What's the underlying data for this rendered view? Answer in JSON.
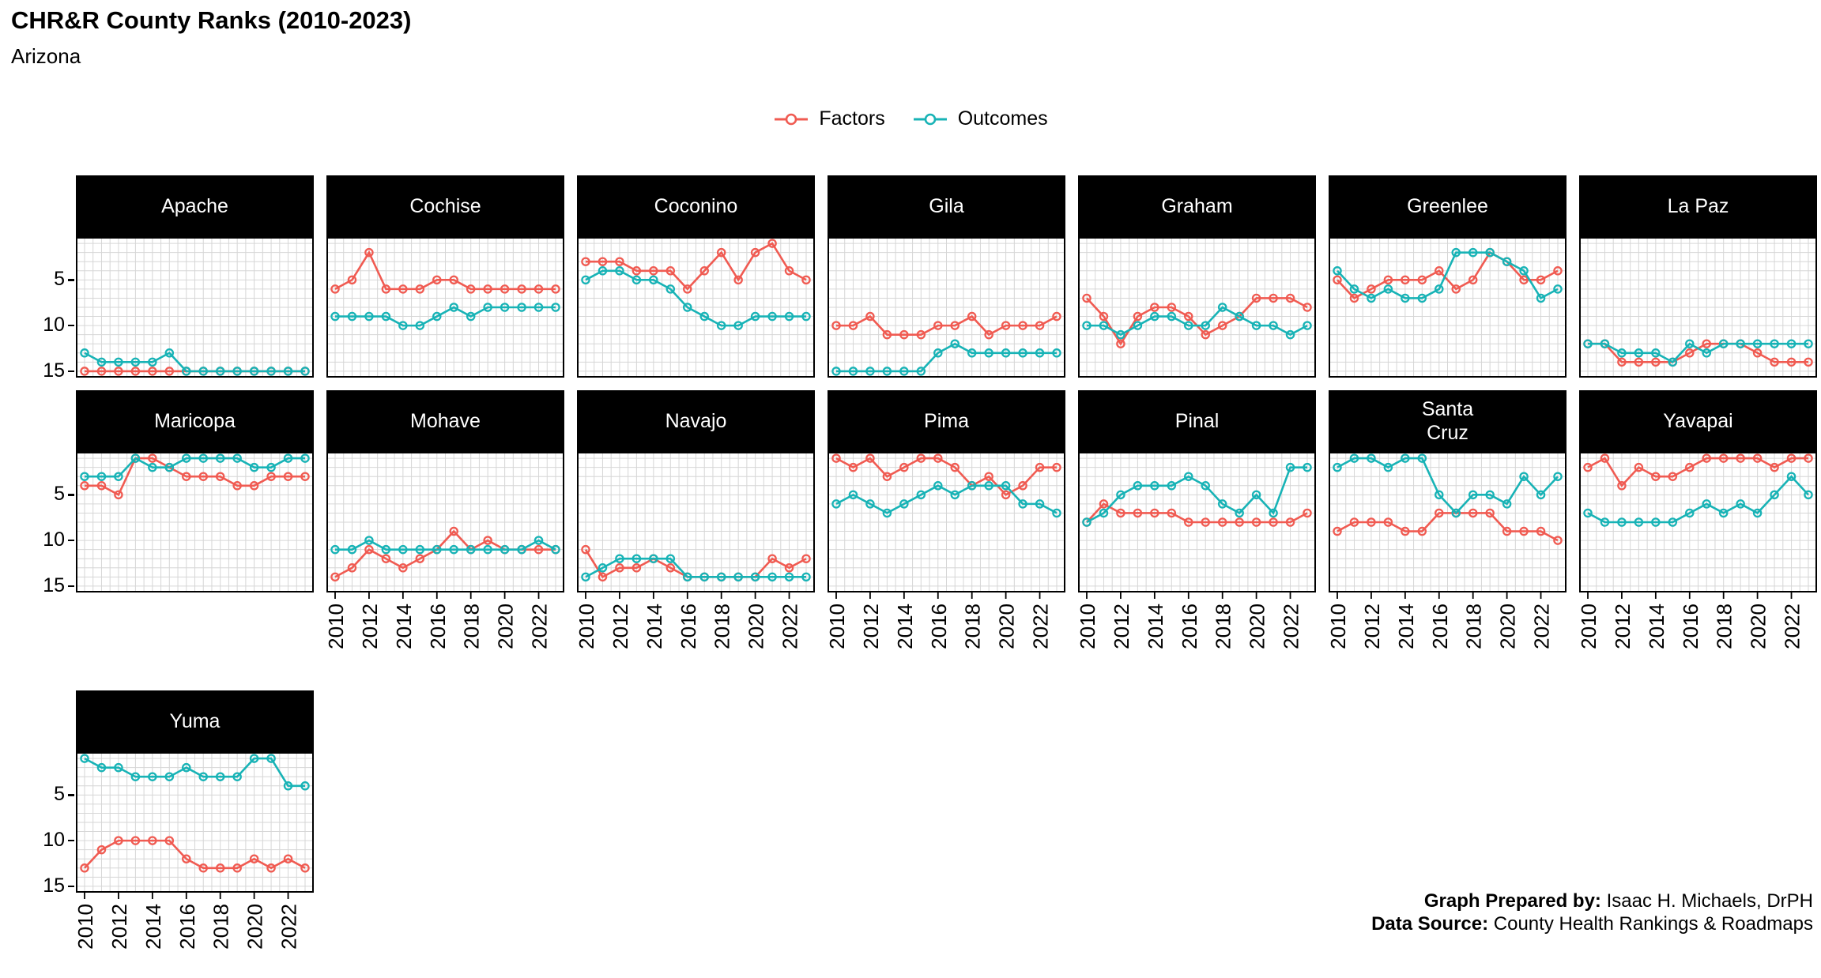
{
  "header": {
    "title": "CHR&R County Ranks (2010-2023)",
    "subtitle": "Arizona"
  },
  "legend": {
    "items": [
      {
        "label": "Factors",
        "color": "#F05B52"
      },
      {
        "label": "Outcomes",
        "color": "#18B3B6"
      }
    ]
  },
  "footer": {
    "prepared_by_label": "Graph Prepared by:",
    "prepared_by_value": " Isaac H. Michaels, DrPH",
    "source_label": "Data Source:",
    "source_value": " County Health Rankings & Roadmaps"
  },
  "chart_data": {
    "type": "line",
    "title": "CHR&R County Ranks (2010-2023)",
    "subtitle": "Arizona",
    "x": [
      2010,
      2011,
      2012,
      2013,
      2014,
      2015,
      2016,
      2017,
      2018,
      2019,
      2020,
      2021,
      2022,
      2023
    ],
    "x_tick_labels": [
      "2010",
      "2012",
      "2014",
      "2016",
      "2018",
      "2020",
      "2022"
    ],
    "x_tick_indices": [
      0,
      2,
      4,
      6,
      8,
      10,
      12
    ],
    "y_ticks": [
      5,
      10,
      15
    ],
    "ylim": [
      1,
      15
    ],
    "y_axis_inverted": true,
    "grid": true,
    "legend_position": "top",
    "series_names": [
      "Factors",
      "Outcomes"
    ],
    "colors": {
      "factors": "#F05B52",
      "outcomes": "#18B3B6",
      "grid": "#D6D6D6",
      "strip_bg": "#000000",
      "strip_text": "#FFFFFF",
      "border": "#000000"
    },
    "panels": [
      {
        "county": "Apache",
        "factors": [
          15,
          15,
          15,
          15,
          15,
          15,
          15,
          15,
          15,
          15,
          15,
          15,
          15,
          15
        ],
        "outcomes": [
          13,
          14,
          14,
          14,
          14,
          13,
          15,
          15,
          15,
          15,
          15,
          15,
          15,
          15
        ]
      },
      {
        "county": "Cochise",
        "factors": [
          6,
          5,
          2,
          6,
          6,
          6,
          5,
          5,
          6,
          6,
          6,
          6,
          6,
          6
        ],
        "outcomes": [
          9,
          9,
          9,
          9,
          10,
          10,
          9,
          8,
          9,
          8,
          8,
          8,
          8,
          8
        ]
      },
      {
        "county": "Coconino",
        "factors": [
          3,
          3,
          3,
          4,
          4,
          4,
          6,
          4,
          2,
          5,
          2,
          1,
          4,
          5
        ],
        "outcomes": [
          5,
          4,
          4,
          5,
          5,
          6,
          8,
          9,
          10,
          10,
          9,
          9,
          9,
          9
        ]
      },
      {
        "county": "Gila",
        "factors": [
          10,
          10,
          9,
          11,
          11,
          11,
          10,
          10,
          9,
          11,
          10,
          10,
          10,
          9
        ],
        "outcomes": [
          15,
          15,
          15,
          15,
          15,
          15,
          13,
          12,
          13,
          13,
          13,
          13,
          13,
          13
        ]
      },
      {
        "county": "Graham",
        "factors": [
          7,
          9,
          12,
          9,
          8,
          8,
          9,
          11,
          10,
          9,
          7,
          7,
          7,
          8
        ],
        "outcomes": [
          10,
          10,
          11,
          10,
          9,
          9,
          10,
          10,
          8,
          9,
          10,
          10,
          11,
          10
        ]
      },
      {
        "county": "Greenlee",
        "factors": [
          5,
          7,
          6,
          5,
          5,
          5,
          4,
          6,
          5,
          2,
          3,
          5,
          5,
          4
        ],
        "outcomes": [
          4,
          6,
          7,
          6,
          7,
          7,
          6,
          2,
          2,
          2,
          3,
          4,
          7,
          6
        ]
      },
      {
        "county": "La Paz",
        "factors": [
          12,
          12,
          14,
          14,
          14,
          14,
          13,
          12,
          12,
          12,
          13,
          14,
          14,
          14
        ],
        "outcomes": [
          12,
          12,
          13,
          13,
          13,
          14,
          12,
          13,
          12,
          12,
          12,
          12,
          12,
          12
        ]
      },
      {
        "county": "Maricopa",
        "factors": [
          4,
          4,
          5,
          1,
          1,
          2,
          3,
          3,
          3,
          4,
          4,
          3,
          3,
          3
        ],
        "outcomes": [
          3,
          3,
          3,
          1,
          2,
          2,
          1,
          1,
          1,
          1,
          2,
          2,
          1,
          1
        ]
      },
      {
        "county": "Mohave",
        "factors": [
          14,
          13,
          11,
          12,
          13,
          12,
          11,
          9,
          11,
          10,
          11,
          11,
          11,
          11
        ],
        "outcomes": [
          11,
          11,
          10,
          11,
          11,
          11,
          11,
          11,
          11,
          11,
          11,
          11,
          10,
          11
        ]
      },
      {
        "county": "Navajo",
        "factors": [
          11,
          14,
          13,
          13,
          12,
          13,
          14,
          14,
          14,
          14,
          14,
          12,
          13,
          12
        ],
        "outcomes": [
          14,
          13,
          12,
          12,
          12,
          12,
          14,
          14,
          14,
          14,
          14,
          14,
          14,
          14
        ]
      },
      {
        "county": "Pima",
        "factors": [
          1,
          2,
          1,
          3,
          2,
          1,
          1,
          2,
          4,
          3,
          5,
          4,
          2,
          2
        ],
        "outcomes": [
          6,
          5,
          6,
          7,
          6,
          5,
          4,
          5,
          4,
          4,
          4,
          6,
          6,
          7
        ]
      },
      {
        "county": "Pinal",
        "factors": [
          8,
          6,
          7,
          7,
          7,
          7,
          8,
          8,
          8,
          8,
          8,
          8,
          8,
          7
        ],
        "outcomes": [
          8,
          7,
          5,
          4,
          4,
          4,
          3,
          4,
          6,
          7,
          5,
          7,
          2,
          2
        ]
      },
      {
        "county": "Santa\nCruz",
        "factors": [
          9,
          8,
          8,
          8,
          9,
          9,
          7,
          7,
          7,
          7,
          9,
          9,
          9,
          10
        ],
        "outcomes": [
          2,
          1,
          1,
          2,
          1,
          1,
          5,
          7,
          5,
          5,
          6,
          3,
          5,
          3
        ]
      },
      {
        "county": "Yavapai",
        "factors": [
          2,
          1,
          4,
          2,
          3,
          3,
          2,
          1,
          1,
          1,
          1,
          2,
          1,
          1
        ],
        "outcomes": [
          7,
          8,
          8,
          8,
          8,
          8,
          7,
          6,
          7,
          6,
          7,
          5,
          3,
          5
        ]
      },
      {
        "county": "Yuma",
        "factors": [
          13,
          11,
          10,
          10,
          10,
          10,
          12,
          13,
          13,
          13,
          12,
          13,
          12,
          13
        ],
        "outcomes": [
          1,
          2,
          2,
          3,
          3,
          3,
          2,
          3,
          3,
          3,
          1,
          1,
          4,
          4
        ]
      }
    ]
  }
}
